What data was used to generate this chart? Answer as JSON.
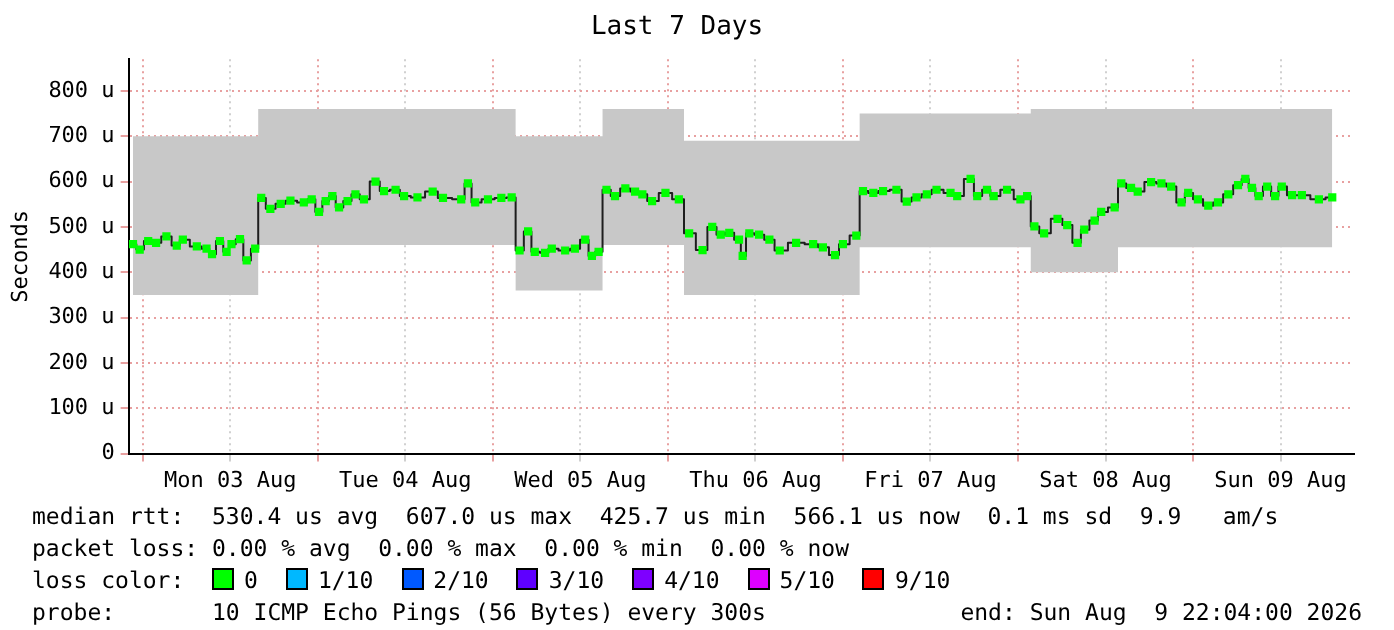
{
  "chart_data": {
    "type": "line",
    "title": "Last 7 Days",
    "ylabel": "Seconds",
    "legend_title": "loss color:",
    "legend": "bottom",
    "grid": true,
    "marker": "square",
    "line_style": "solid",
    "xlim": [
      "2026-08-02T22:04",
      "2026-08-09T22:04"
    ],
    "xticks": [
      {
        "value": "2026-08-03T00:00",
        "label": null
      },
      {
        "value": "2026-08-03T12:00",
        "label": "Mon 03 Aug"
      },
      {
        "value": "2026-08-04T00:00",
        "label": null
      },
      {
        "value": "2026-08-04T12:00",
        "label": "Tue 04 Aug"
      },
      {
        "value": "2026-08-05T00:00",
        "label": null
      },
      {
        "value": "2026-08-05T12:00",
        "label": "Wed 05 Aug"
      },
      {
        "value": "2026-08-06T00:00",
        "label": null
      },
      {
        "value": "2026-08-06T12:00",
        "label": "Thu 06 Aug"
      },
      {
        "value": "2026-08-07T00:00",
        "label": null
      },
      {
        "value": "2026-08-07T12:00",
        "label": "Fri 07 Aug"
      },
      {
        "value": "2026-08-08T00:00",
        "label": null
      },
      {
        "value": "2026-08-08T12:00",
        "label": "Sat 08 Aug"
      },
      {
        "value": "2026-08-09T00:00",
        "label": null
      },
      {
        "value": "2026-08-09T12:00",
        "label": "Sun 09 Aug"
      }
    ],
    "ylim": [
      0,
      870
    ],
    "yticks": [
      0,
      {
        "value": 100,
        "label": "100 u"
      },
      {
        "value": 200,
        "label": "200 u"
      },
      {
        "value": 300,
        "label": "300 u"
      },
      {
        "value": 400,
        "label": "400 u"
      },
      {
        "value": 500,
        "label": "500 u"
      },
      {
        "value": 600,
        "label": "600 u"
      },
      {
        "value": 700,
        "label": "700 u"
      },
      {
        "value": 800,
        "label": "800 u"
      }
    ],
    "series": [
      {
        "name": "0",
        "color": "#00ff00",
        "x": [
          "2026-08-02T22:40",
          "2026-08-02T23:35",
          "2026-08-03T00:45",
          "2026-08-03T01:50",
          "2026-08-03T03:15",
          "2026-08-03T04:40",
          "2026-08-03T05:30",
          "2026-08-03T07:25",
          "2026-08-03T08:45",
          "2026-08-03T09:30",
          "2026-08-03T10:35",
          "2026-08-03T11:30",
          "2026-08-03T12:10",
          "2026-08-03T13:20",
          "2026-08-03T14:15",
          "2026-08-03T15:25",
          "2026-08-03T16:15",
          "2026-08-03T17:30",
          "2026-08-03T18:55",
          "2026-08-03T20:15",
          "2026-08-03T22:05",
          "2026-08-03T23:10",
          "2026-08-04T00:10",
          "2026-08-04T01:05",
          "2026-08-04T02:00",
          "2026-08-04T02:55",
          "2026-08-04T04:05",
          "2026-08-04T05:10",
          "2026-08-04T06:20",
          "2026-08-04T07:55",
          "2026-08-04T09:05",
          "2026-08-04T10:40",
          "2026-08-04T11:50",
          "2026-08-04T13:40",
          "2026-08-04T15:45",
          "2026-08-04T17:10",
          "2026-08-04T19:40",
          "2026-08-04T20:35",
          "2026-08-04T21:35",
          "2026-08-04T23:20",
          "2026-08-05T01:10",
          "2026-08-05T02:35",
          "2026-08-05T03:40",
          "2026-08-05T04:50",
          "2026-08-05T05:45",
          "2026-08-05T07:10",
          "2026-08-05T08:05",
          "2026-08-05T09:55",
          "2026-08-05T11:15",
          "2026-08-05T12:40",
          "2026-08-05T13:35",
          "2026-08-05T14:30",
          "2026-08-05T15:35",
          "2026-08-05T16:45",
          "2026-08-05T18:10",
          "2026-08-05T19:30",
          "2026-08-05T20:30",
          "2026-08-05T21:50",
          "2026-08-05T23:40",
          "2026-08-06T01:30",
          "2026-08-06T02:55",
          "2026-08-06T04:45",
          "2026-08-06T06:05",
          "2026-08-06T07:15",
          "2026-08-06T08:25",
          "2026-08-06T09:45",
          "2026-08-06T10:15",
          "2026-08-06T11:10",
          "2026-08-06T12:30",
          "2026-08-06T13:55",
          "2026-08-06T15:20",
          "2026-08-06T17:35",
          "2026-08-06T19:55",
          "2026-08-06T21:15",
          "2026-08-06T22:55",
          "2026-08-07T00:00",
          "2026-08-07T01:50",
          "2026-08-07T02:45",
          "2026-08-07T04:10",
          "2026-08-07T05:30",
          "2026-08-07T07:20",
          "2026-08-07T08:45",
          "2026-08-07T10:05",
          "2026-08-07T11:30",
          "2026-08-07T12:50",
          "2026-08-07T14:45",
          "2026-08-07T15:40",
          "2026-08-07T17:30",
          "2026-08-07T18:25",
          "2026-08-07T19:45",
          "2026-08-07T20:40",
          "2026-08-07T22:30",
          "2026-08-08T00:20",
          "2026-08-08T01:15",
          "2026-08-08T02:15",
          "2026-08-08T03:35",
          "2026-08-08T05:25",
          "2026-08-08T06:45",
          "2026-08-08T08:10",
          "2026-08-08T09:05",
          "2026-08-08T10:30",
          "2026-08-08T11:25",
          "2026-08-08T13:15",
          "2026-08-08T14:10",
          "2026-08-08T15:30",
          "2026-08-08T16:25",
          "2026-08-08T18:15",
          "2026-08-08T19:40",
          "2026-08-08T21:00",
          "2026-08-08T22:25",
          "2026-08-08T23:20",
          "2026-08-09T00:40",
          "2026-08-09T02:05",
          "2026-08-09T03:25",
          "2026-08-09T04:50",
          "2026-08-09T06:10",
          "2026-08-09T07:10",
          "2026-08-09T08:05",
          "2026-08-09T09:00",
          "2026-08-09T10:10",
          "2026-08-09T11:15",
          "2026-08-09T12:10",
          "2026-08-09T13:35",
          "2026-08-09T14:55",
          "2026-08-09T17:15",
          "2026-08-09T19:05"
        ],
        "values": [
          462,
          450,
          469,
          465,
          479,
          459,
          472,
          457,
          452,
          440,
          469,
          445,
          462,
          473,
          426,
          452,
          564,
          540,
          551,
          558,
          554,
          561,
          533,
          557,
          568,
          543,
          557,
          572,
          561,
          600,
          579,
          582,
          568,
          565,
          578,
          564,
          561,
          596,
          554,
          561,
          564,
          565,
          448,
          490,
          445,
          443,
          452,
          448,
          452,
          472,
          436,
          445,
          582,
          568,
          585,
          578,
          572,
          557,
          575,
          561,
          486,
          449,
          500,
          483,
          487,
          472,
          436,
          486,
          483,
          472,
          448,
          465,
          462,
          455,
          438,
          462,
          481,
          579,
          575,
          579,
          582,
          556,
          565,
          572,
          582,
          575,
          568,
          606,
          568,
          582,
          568,
          582,
          561,
          568,
          501,
          486,
          518,
          504,
          465,
          494,
          514,
          533,
          543,
          596,
          586,
          578,
          599,
          596,
          589,
          554,
          575,
          561,
          547,
          554,
          572,
          592,
          606,
          586,
          568,
          589,
          568,
          589,
          570,
          570,
          561,
          565
        ],
        "lower": [
          350,
          350,
          350,
          350,
          350,
          350,
          350,
          350,
          350,
          350,
          350,
          350,
          350,
          350,
          350,
          350,
          460,
          460,
          460,
          460,
          460,
          460,
          460,
          460,
          460,
          460,
          460,
          460,
          460,
          460,
          460,
          460,
          460,
          460,
          460,
          460,
          460,
          460,
          460,
          460,
          460,
          460,
          360,
          360,
          360,
          360,
          360,
          360,
          360,
          360,
          360,
          360,
          460,
          460,
          460,
          460,
          460,
          460,
          460,
          460,
          350,
          350,
          350,
          350,
          350,
          350,
          350,
          350,
          350,
          350,
          350,
          350,
          350,
          350,
          350,
          350,
          350,
          455,
          455,
          455,
          455,
          455,
          455,
          455,
          455,
          455,
          455,
          455,
          455,
          455,
          455,
          455,
          455,
          455,
          400,
          400,
          400,
          400,
          400,
          400,
          400,
          400,
          400,
          455,
          455,
          455,
          455,
          455,
          455,
          455,
          455,
          455,
          455,
          455,
          455,
          455,
          455,
          455,
          455,
          455,
          455,
          455,
          455,
          455,
          455,
          455
        ],
        "upper": [
          700,
          700,
          700,
          700,
          700,
          700,
          700,
          700,
          700,
          700,
          700,
          700,
          700,
          700,
          700,
          700,
          760,
          760,
          760,
          760,
          760,
          760,
          760,
          760,
          760,
          760,
          760,
          760,
          760,
          760,
          760,
          760,
          760,
          760,
          760,
          760,
          760,
          760,
          760,
          760,
          760,
          760,
          700,
          700,
          700,
          700,
          700,
          700,
          700,
          700,
          700,
          700,
          760,
          760,
          760,
          760,
          760,
          760,
          760,
          760,
          690,
          690,
          690,
          690,
          690,
          690,
          690,
          690,
          690,
          690,
          690,
          690,
          690,
          690,
          690,
          690,
          690,
          750,
          750,
          750,
          750,
          750,
          750,
          750,
          750,
          750,
          750,
          750,
          750,
          750,
          750,
          750,
          750,
          750,
          760,
          760,
          760,
          760,
          760,
          760,
          760,
          760,
          760,
          760,
          760,
          760,
          760,
          760,
          760,
          760,
          760,
          760,
          760,
          760,
          760,
          760,
          760,
          760,
          760,
          760,
          760,
          760,
          760,
          760,
          760,
          760
        ]
      },
      {
        "name": "1/10",
        "color": "#00b8ff"
      },
      {
        "name": "2/10",
        "color": "#0059ff"
      },
      {
        "name": "3/10",
        "color": "#5e00ff"
      },
      {
        "name": "4/10",
        "color": "#7e00ff"
      },
      {
        "name": "5/10",
        "color": "#dd00ff"
      },
      {
        "name": "9/10",
        "color": "#ff0000"
      }
    ],
    "annotations": [
      "median rtt:  530.4 us avg  607.0 us max  425.7 us min  566.1 us now  0.1 ms sd  9.9   am/s",
      "packet loss: 0.00 % avg  0.00 % max  0.00 % min  0.00 % now",
      "probe:       10 ICMP Echo Pings (56 Bytes) every 300s",
      "end: Sun Aug  9 22:04:00 2026"
    ]
  }
}
